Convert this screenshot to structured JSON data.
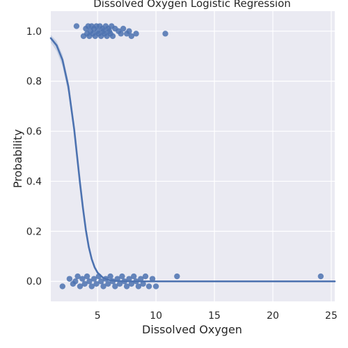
{
  "chart_data": {
    "type": "scatter",
    "title": "Dissolved Oxygen Logistic Regression",
    "xlabel": "Dissolved Oxygen",
    "ylabel": "Probability",
    "xlim": [
      1.0,
      25.3
    ],
    "ylim": [
      -0.08,
      1.08
    ],
    "xticks": [
      5,
      10,
      15,
      20,
      25
    ],
    "yticks": [
      0.0,
      0.2,
      0.4,
      0.6,
      0.8,
      1.0
    ],
    "xtick_labels": [
      "5",
      "10",
      "15",
      "20",
      "25"
    ],
    "ytick_labels": [
      "0.0",
      "0.2",
      "0.4",
      "0.6",
      "0.8",
      "1.0"
    ],
    "grid": true,
    "legend": "none",
    "colors": {
      "background": "#eaeaf2",
      "grid": "#ffffff",
      "points": "#4c72b0",
      "line": "#4c72b0",
      "band": "#4c72b0"
    },
    "points": {
      "y1": [
        [
          3.2,
          1.02
        ],
        [
          3.8,
          0.98
        ],
        [
          4.0,
          1.01
        ],
        [
          4.1,
          0.99
        ],
        [
          4.2,
          1.02
        ],
        [
          4.3,
          0.98
        ],
        [
          4.4,
          1.0
        ],
        [
          4.5,
          1.02
        ],
        [
          4.6,
          0.99
        ],
        [
          4.7,
          1.01
        ],
        [
          4.8,
          0.98
        ],
        [
          4.9,
          1.02
        ],
        [
          5.0,
          1.0
        ],
        [
          5.1,
          0.99
        ],
        [
          5.2,
          1.02
        ],
        [
          5.3,
          0.98
        ],
        [
          5.4,
          1.01
        ],
        [
          5.5,
          1.0
        ],
        [
          5.6,
          0.99
        ],
        [
          5.7,
          1.02
        ],
        [
          5.8,
          0.98
        ],
        [
          5.9,
          1.01
        ],
        [
          6.0,
          1.0
        ],
        [
          6.1,
          0.99
        ],
        [
          6.2,
          1.02
        ],
        [
          6.3,
          0.98
        ],
        [
          6.5,
          1.01
        ],
        [
          6.8,
          1.0
        ],
        [
          7.0,
          0.99
        ],
        [
          7.2,
          1.01
        ],
        [
          7.5,
          0.99
        ],
        [
          7.7,
          1.0
        ],
        [
          7.9,
          0.98
        ],
        [
          8.3,
          0.99
        ],
        [
          10.8,
          0.99
        ]
      ],
      "y0": [
        [
          2.0,
          -0.02
        ],
        [
          2.6,
          0.01
        ],
        [
          2.9,
          -0.01
        ],
        [
          3.1,
          0.0
        ],
        [
          3.3,
          0.02
        ],
        [
          3.5,
          -0.02
        ],
        [
          3.7,
          0.01
        ],
        [
          3.9,
          -0.01
        ],
        [
          4.1,
          0.02
        ],
        [
          4.3,
          0.0
        ],
        [
          4.5,
          -0.02
        ],
        [
          4.7,
          0.01
        ],
        [
          4.9,
          -0.01
        ],
        [
          5.1,
          0.02
        ],
        [
          5.3,
          0.0
        ],
        [
          5.5,
          -0.02
        ],
        [
          5.7,
          0.01
        ],
        [
          5.9,
          -0.01
        ],
        [
          6.1,
          0.02
        ],
        [
          6.3,
          0.0
        ],
        [
          6.5,
          -0.02
        ],
        [
          6.7,
          0.01
        ],
        [
          6.9,
          -0.01
        ],
        [
          7.1,
          0.02
        ],
        [
          7.3,
          0.0
        ],
        [
          7.5,
          -0.02
        ],
        [
          7.7,
          0.01
        ],
        [
          7.9,
          -0.01
        ],
        [
          8.1,
          0.02
        ],
        [
          8.3,
          0.0
        ],
        [
          8.5,
          -0.02
        ],
        [
          8.7,
          0.01
        ],
        [
          8.9,
          -0.01
        ],
        [
          9.1,
          0.02
        ],
        [
          9.4,
          -0.02
        ],
        [
          9.7,
          0.01
        ],
        [
          10.0,
          -0.02
        ],
        [
          11.8,
          0.02
        ],
        [
          24.1,
          0.02
        ]
      ]
    },
    "fit": {
      "x": [
        1.0,
        1.5,
        2.0,
        2.5,
        3.0,
        3.25,
        3.5,
        3.75,
        4.0,
        4.25,
        4.5,
        4.75,
        5.0,
        5.5,
        6.0,
        6.5,
        7.0,
        8.0,
        9.0,
        10.0,
        12.0,
        15.0,
        20.0,
        25.3
      ],
      "y": [
        0.972,
        0.943,
        0.885,
        0.779,
        0.608,
        0.5,
        0.392,
        0.293,
        0.205,
        0.137,
        0.089,
        0.056,
        0.035,
        0.013,
        0.005,
        0.002,
        0.001,
        0.0,
        0.0,
        0.0,
        0.0,
        0.0,
        0.0,
        0.0
      ]
    },
    "band": {
      "lower": [
        0.955,
        0.92,
        0.86,
        0.752,
        0.585,
        0.482,
        0.375,
        0.279,
        0.193,
        0.127,
        0.082,
        0.05,
        0.031,
        0.011,
        0.004,
        0.001,
        0.0,
        0.0,
        0.0,
        0.0,
        0.0,
        0.0,
        0.0,
        0.0
      ],
      "upper": [
        0.985,
        0.96,
        0.906,
        0.803,
        0.63,
        0.518,
        0.408,
        0.307,
        0.217,
        0.147,
        0.096,
        0.062,
        0.039,
        0.015,
        0.006,
        0.003,
        0.001,
        0.0,
        0.0,
        0.0,
        0.0,
        0.0,
        0.0,
        0.0
      ]
    }
  }
}
